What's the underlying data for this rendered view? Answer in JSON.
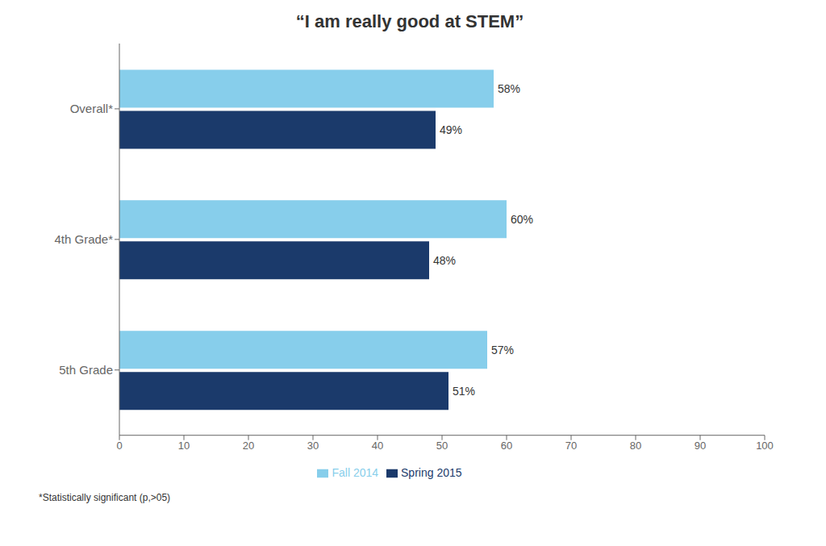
{
  "chart_data": {
    "type": "bar",
    "title": "“I am really good at STEM”",
    "orientation": "horizontal",
    "categories": [
      "5th Grade",
      "4th Grade*",
      "Overall*"
    ],
    "series": [
      {
        "name": "Fall 2014",
        "color": "#87CEEB",
        "values": [
          57,
          60,
          58
        ],
        "value_labels": [
          "57%",
          "60%",
          "58%"
        ]
      },
      {
        "name": "Spring 2015",
        "color": "#1B3A6B",
        "values": [
          51,
          48,
          49
        ],
        "value_labels": [
          "51%",
          "48%",
          "49%"
        ]
      }
    ],
    "xlim": [
      0,
      100
    ],
    "xticks": [
      0,
      10,
      20,
      30,
      40,
      50,
      60,
      70,
      80,
      90,
      100
    ],
    "grid": false,
    "legend": "bottom",
    "data_labels": true,
    "annotations": [
      "*Statistically significant (p,>05)"
    ]
  }
}
